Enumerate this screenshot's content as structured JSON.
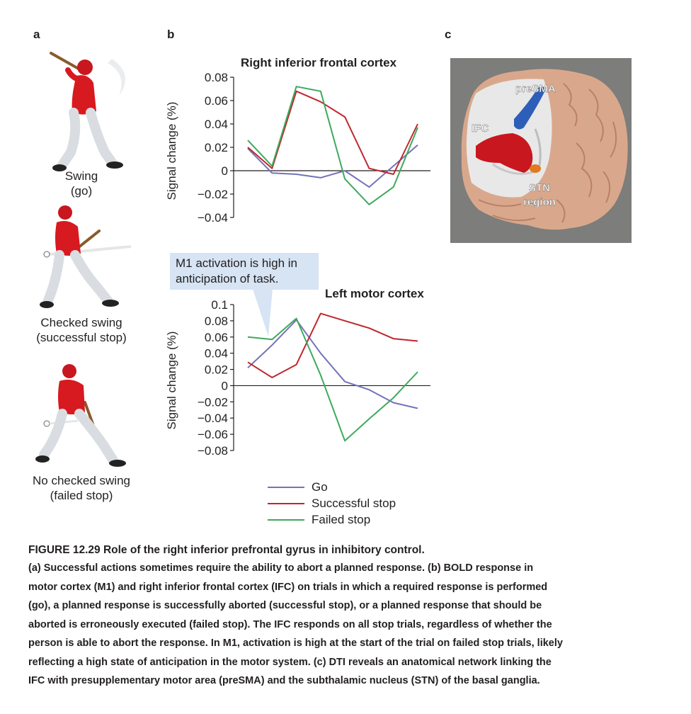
{
  "panels": {
    "a": "a",
    "b": "b",
    "c": "c"
  },
  "players": [
    {
      "caption_line1": "Swing",
      "caption_line2": "(go)"
    },
    {
      "caption_line1": "Checked swing",
      "caption_line2": "(successful stop)"
    },
    {
      "caption_line1": "No checked swing",
      "caption_line2": "(failed stop)"
    }
  ],
  "callout": {
    "line1": "M1 activation is high in",
    "line2": "anticipation of task."
  },
  "brain": {
    "labels": {
      "presma": "preSMA",
      "ifc": "IFC",
      "stn_line1": "STN",
      "stn_line2": "region"
    },
    "colors": {
      "background": "#7d7d7b",
      "ifc": "#c8171e",
      "presma": "#2e5fb8",
      "stn": "#e07a20",
      "cortex": "#d9a88c"
    }
  },
  "legend": [
    {
      "label": "Go",
      "color": "#7373b8"
    },
    {
      "label": "Successful stop",
      "color": "#c0272d"
    },
    {
      "label": "Failed stop",
      "color": "#3daa5c"
    }
  ],
  "chart_data": [
    {
      "type": "line",
      "title": "Right inferior frontal cortex",
      "ylabel": "Signal change (%)",
      "xlabel": "",
      "ylim": [
        -0.04,
        0.08
      ],
      "yticks": [
        0.08,
        0.06,
        0.04,
        0.02,
        0,
        -0.02,
        -0.04
      ],
      "ytick_labels": [
        "0.08",
        "0.06",
        "0.04",
        "0.02",
        "0",
        "−0.02",
        "−0.04"
      ],
      "x": [
        0,
        1,
        2,
        3,
        4,
        5,
        6,
        7
      ],
      "series": [
        {
          "name": "Go",
          "color": "#7373b8",
          "values": [
            0.019,
            -0.002,
            -0.003,
            -0.006,
            0.0,
            -0.014,
            0.004,
            0.022
          ]
        },
        {
          "name": "Successful stop",
          "color": "#c0272d",
          "values": [
            0.02,
            0.002,
            0.068,
            0.059,
            0.046,
            0.002,
            -0.003,
            0.04
          ]
        },
        {
          "name": "Failed stop",
          "color": "#3daa5c",
          "values": [
            0.026,
            0.004,
            0.072,
            0.068,
            -0.007,
            -0.029,
            -0.014,
            0.037
          ]
        }
      ]
    },
    {
      "type": "line",
      "title": "Left motor cortex",
      "ylabel": "Signal change (%)",
      "xlabel": "",
      "ylim": [
        -0.08,
        0.1
      ],
      "yticks": [
        0.1,
        0.08,
        0.06,
        0.04,
        0.02,
        0,
        -0.02,
        -0.04,
        -0.06,
        -0.08
      ],
      "ytick_labels": [
        "0.1",
        "0.08",
        "0.06",
        "0.04",
        "0.02",
        "0",
        "−0.02",
        "−0.04",
        "−0.06",
        "−0.08"
      ],
      "x": [
        0,
        1,
        2,
        3,
        4,
        5,
        6,
        7
      ],
      "series": [
        {
          "name": "Go",
          "color": "#7373b8",
          "values": [
            0.022,
            0.05,
            0.081,
            0.04,
            0.005,
            -0.005,
            -0.021,
            -0.028
          ]
        },
        {
          "name": "Successful stop",
          "color": "#c0272d",
          "values": [
            0.029,
            0.01,
            0.026,
            0.089,
            0.08,
            0.071,
            0.058,
            0.055
          ]
        },
        {
          "name": "Failed stop",
          "color": "#3daa5c",
          "values": [
            0.06,
            0.057,
            0.083,
            0.013,
            -0.068,
            -0.041,
            -0.015,
            0.017
          ]
        }
      ]
    }
  ],
  "caption": {
    "title": "FIGURE 12.29 Role of the right inferior prefrontal gyrus in inhibitory control.",
    "lines": [
      "(a) Successful actions sometimes require the ability to abort a planned response. (b) BOLD response in",
      "motor cortex (M1) and right inferior frontal cortex (IFC) on trials in which a required response is performed",
      "(go), a planned response is successfully aborted (successful stop), or a planned response that should be",
      "aborted is erroneously executed (failed stop). The IFC responds on all stop trials, regardless of whether the",
      "person is able to abort the response. In M1, activation is high at the start of the trial on failed stop trials, likely",
      "reflecting a high state of anticipation in the motor system. (c) DTI reveals an anatomical network linking the",
      "IFC with presupplementary motor area (preSMA) and the subthalamic nucleus (STN) of the basal ganglia."
    ]
  }
}
